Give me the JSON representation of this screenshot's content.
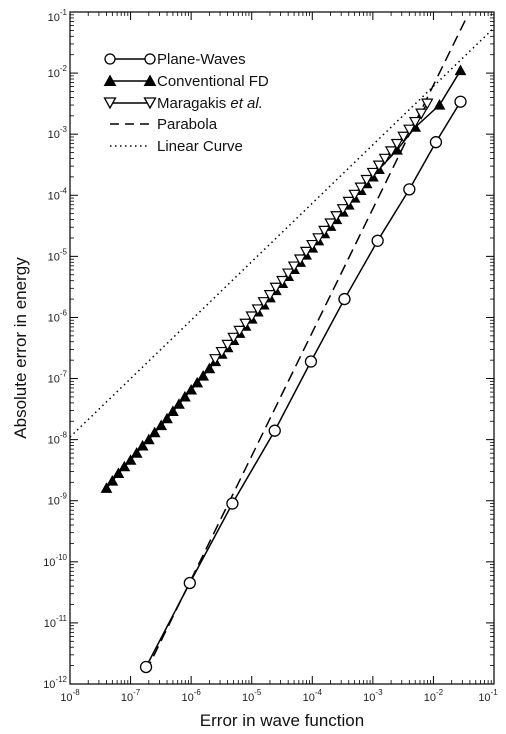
{
  "chart_data": {
    "type": "scatter",
    "title": "",
    "xlabel": "Error in wave function",
    "ylabel": "Absolute error in energy",
    "x_scale": "log",
    "y_scale": "log",
    "xlim": [
      1e-08,
      0.1
    ],
    "ylim": [
      1e-12,
      0.1
    ],
    "x_tick_labels": [
      {
        "base": "10",
        "exp": "-8"
      },
      {
        "base": "10",
        "exp": "-7"
      },
      {
        "base": "10",
        "exp": "-6"
      },
      {
        "base": "10",
        "exp": "-5"
      },
      {
        "base": "10",
        "exp": "-4"
      },
      {
        "base": "10",
        "exp": "-3"
      },
      {
        "base": "10",
        "exp": "-2"
      },
      {
        "base": "10",
        "exp": "-1"
      }
    ],
    "y_tick_labels": [
      {
        "base": "10",
        "exp": "-12"
      },
      {
        "base": "10",
        "exp": "-11"
      },
      {
        "base": "10",
        "exp": "-10"
      },
      {
        "base": "10",
        "exp": "-9"
      },
      {
        "base": "10",
        "exp": "-8"
      },
      {
        "base": "10",
        "exp": "-7"
      },
      {
        "base": "10",
        "exp": "-6"
      },
      {
        "base": "10",
        "exp": "-5"
      },
      {
        "base": "10",
        "exp": "-4"
      },
      {
        "base": "10",
        "exp": "-3"
      },
      {
        "base": "10",
        "exp": "-2"
      },
      {
        "base": "10",
        "exp": "-1"
      }
    ],
    "grid": false,
    "legend_position": "top-left",
    "series": [
      {
        "name": "Plane-Waves",
        "style": "line-markers",
        "marker": "open-circle",
        "color": "#000000",
        "x": [
          1.8e-07,
          9.5e-07,
          4.8e-06,
          2.4e-05,
          9.5e-05,
          0.00034,
          0.0012,
          0.004,
          0.011,
          0.028
        ],
        "y": [
          1.9e-12,
          4.5e-11,
          9e-10,
          1.4e-08,
          1.9e-07,
          2e-06,
          1.8e-05,
          0.000125,
          0.00074,
          0.0034
        ]
      },
      {
        "name": "Conventional FD",
        "style": "line-markers",
        "marker": "filled-triangle-up",
        "color": "#000000",
        "x": [
          4e-08,
          5e-08,
          6.3e-08,
          7.9e-08,
          1e-07,
          1.26e-07,
          1.58e-07,
          2e-07,
          2.5e-07,
          3.2e-07,
          4e-07,
          5e-07,
          6.3e-07,
          7.9e-07,
          1e-06,
          1.26e-06,
          1.58e-06,
          2e-06,
          2.5e-06,
          3.2e-06,
          4e-06,
          5e-06,
          6.3e-06,
          7.9e-06,
          1e-05,
          1.26e-05,
          1.58e-05,
          2e-05,
          2.5e-05,
          3.2e-05,
          4e-05,
          5e-05,
          6.3e-05,
          7.9e-05,
          0.0001,
          0.000126,
          0.000158,
          0.0002,
          0.00025,
          0.00032,
          0.0004,
          0.0005,
          0.00063,
          0.00079,
          0.001,
          0.00126,
          0.0025,
          0.005,
          0.0126,
          0.028
        ],
        "y": [
          1.6e-09,
          2.1e-09,
          2.8e-09,
          3.6e-09,
          4.6e-09,
          6e-09,
          7.9e-09,
          1e-08,
          1.3e-08,
          1.7e-08,
          2.2e-08,
          2.9e-08,
          3.8e-08,
          5e-08,
          6.5e-08,
          8.5e-08,
          1.1e-07,
          1.45e-07,
          1.9e-07,
          2.5e-07,
          3.2e-07,
          4.2e-07,
          5.5e-07,
          7.2e-07,
          9.4e-07,
          1.23e-06,
          1.6e-06,
          2.1e-06,
          2.75e-06,
          3.6e-06,
          4.7e-06,
          6.1e-06,
          8e-06,
          1.05e-05,
          1.37e-05,
          1.8e-05,
          2.35e-05,
          3.1e-05,
          4e-05,
          5.3e-05,
          6.9e-05,
          9e-05,
          0.00012,
          0.000155,
          0.0002,
          0.000265,
          0.00055,
          0.0013,
          0.003,
          0.011
        ]
      },
      {
        "name": "Maragakis et al.",
        "name_prefix": "Maragakis ",
        "name_italic": "et al.",
        "style": "line-markers",
        "marker": "open-triangle-down",
        "color": "#000000",
        "x": [
          2.5e-06,
          3.2e-06,
          4e-06,
          5e-06,
          6.3e-06,
          7.9e-06,
          1e-05,
          1.26e-05,
          1.58e-05,
          2e-05,
          2.5e-05,
          3.2e-05,
          4e-05,
          5e-05,
          6.3e-05,
          7.9e-05,
          0.0001,
          0.000126,
          0.000158,
          0.0002,
          0.00025,
          0.00032,
          0.0004,
          0.0005,
          0.00063,
          0.00079,
          0.001,
          0.00126,
          0.00158,
          0.002,
          0.0025,
          0.0032,
          0.004,
          0.005,
          0.0063,
          0.0079
        ],
        "y": [
          2.1e-07,
          2.75e-07,
          3.6e-07,
          4.7e-07,
          6.1e-07,
          8e-07,
          1.05e-06,
          1.37e-06,
          1.8e-06,
          2.35e-06,
          3.1e-06,
          4e-06,
          5.3e-06,
          6.9e-06,
          9e-06,
          1.2e-05,
          1.55e-05,
          2e-05,
          2.65e-05,
          3.5e-05,
          4.6e-05,
          6e-05,
          7.9e-05,
          0.000103,
          0.000135,
          0.00018,
          0.000235,
          0.00031,
          0.0004,
          0.00053,
          0.0007,
          0.00092,
          0.0012,
          0.0016,
          0.0022,
          0.0032
        ]
      },
      {
        "name": "Parabola",
        "style": "dashed",
        "color": "#000000",
        "x": [
          1.8e-07,
          0.035
        ],
        "y": [
          1.6e-12,
          0.08
        ]
      },
      {
        "name": "Linear Curve",
        "style": "dotted",
        "color": "#000000",
        "x": [
          1e-08,
          0.1
        ],
        "y": [
          1.1e-08,
          0.055
        ]
      }
    ]
  }
}
